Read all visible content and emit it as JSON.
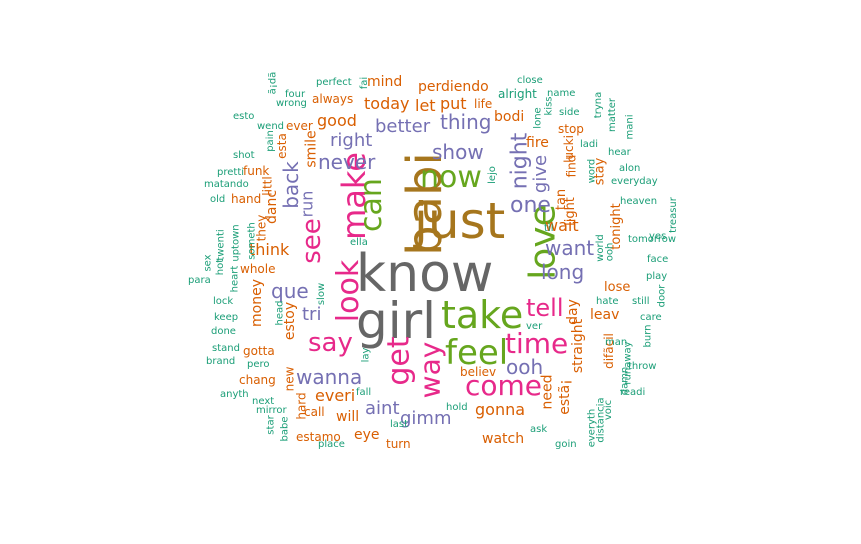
{
  "colors": {
    "gray": "#666666",
    "brown": "#a6761d",
    "green": "#66a61e",
    "pink": "#e7298a",
    "purple": "#7570b3",
    "orange": "#d95f02",
    "teal": "#1b9e77"
  },
  "words": [
    {
      "text": "know",
      "color": "gray",
      "weight": 1.0
    },
    {
      "text": "girl",
      "color": "gray",
      "weight": 0.9
    },
    {
      "text": "just",
      "color": "brown",
      "weight": 0.86
    },
    {
      "text": "babi",
      "color": "brown",
      "weight": 0.86
    },
    {
      "text": "take",
      "color": "green",
      "weight": 0.66
    },
    {
      "text": "now",
      "color": "green",
      "weight": 0.55
    },
    {
      "text": "love",
      "color": "green",
      "weight": 0.55
    },
    {
      "text": "feel",
      "color": "green",
      "weight": 0.57
    },
    {
      "text": "make",
      "color": "pink",
      "weight": 0.5
    },
    {
      "text": "look",
      "color": "pink",
      "weight": 0.5
    },
    {
      "text": "get",
      "color": "pink",
      "weight": 0.48
    },
    {
      "text": "way",
      "color": "pink",
      "weight": 0.48
    },
    {
      "text": "come",
      "color": "pink",
      "weight": 0.45
    },
    {
      "text": "time",
      "color": "pink",
      "weight": 0.45
    },
    {
      "text": "say",
      "color": "pink",
      "weight": 0.4
    },
    {
      "text": "see",
      "color": "pink",
      "weight": 0.4
    },
    {
      "text": "tell",
      "color": "pink",
      "weight": 0.4
    },
    {
      "text": "can",
      "color": "green",
      "weight": 0.45
    },
    {
      "text": "one",
      "color": "purple",
      "weight": 0.36
    },
    {
      "text": "night",
      "color": "purple",
      "weight": 0.34
    },
    {
      "text": "show",
      "color": "purple",
      "weight": 0.32
    },
    {
      "text": "thing",
      "color": "purple",
      "weight": 0.32
    },
    {
      "text": "never",
      "color": "purple",
      "weight": 0.32
    },
    {
      "text": "want",
      "color": "purple",
      "weight": 0.3
    },
    {
      "text": "long",
      "color": "purple",
      "weight": 0.32
    },
    {
      "text": "ooh",
      "color": "purple",
      "weight": 0.32
    },
    {
      "text": "wanna",
      "color": "purple",
      "weight": 0.32
    },
    {
      "text": "que",
      "color": "purple",
      "weight": 0.3
    },
    {
      "text": "back",
      "color": "purple",
      "weight": 0.3
    },
    {
      "text": "right",
      "color": "purple",
      "weight": 0.28
    },
    {
      "text": "better",
      "color": "purple",
      "weight": 0.28
    },
    {
      "text": "give",
      "color": "purple",
      "weight": 0.28
    },
    {
      "text": "run",
      "color": "purple",
      "weight": 0.26
    },
    {
      "text": "tri",
      "color": "purple",
      "weight": 0.28
    },
    {
      "text": "aint",
      "color": "purple",
      "weight": 0.28
    },
    {
      "text": "gimm",
      "color": "purple",
      "weight": 0.28
    },
    {
      "text": "gonna",
      "color": "orange",
      "weight": 0.26
    },
    {
      "text": "everi",
      "color": "orange",
      "weight": 0.26
    },
    {
      "text": "wait",
      "color": "orange",
      "weight": 0.24
    },
    {
      "text": "think",
      "color": "orange",
      "weight": 0.24
    },
    {
      "text": "good",
      "color": "orange",
      "weight": 0.22
    },
    {
      "text": "today",
      "color": "orange",
      "weight": 0.2
    },
    {
      "text": "put",
      "color": "orange",
      "weight": 0.2
    },
    {
      "text": "let",
      "color": "orange",
      "weight": 0.2
    },
    {
      "text": "bodi",
      "color": "orange",
      "weight": 0.18
    },
    {
      "text": "fire",
      "color": "orange",
      "weight": 0.2
    },
    {
      "text": "smile",
      "color": "orange",
      "weight": 0.18
    },
    {
      "text": "danc",
      "color": "orange",
      "weight": 0.2
    },
    {
      "text": "money",
      "color": "orange",
      "weight": 0.2
    },
    {
      "text": "estoy",
      "color": "orange",
      "weight": 0.2
    },
    {
      "text": "need",
      "color": "orange",
      "weight": 0.22
    },
    {
      "text": "day",
      "color": "orange",
      "weight": 0.2
    },
    {
      "text": "estã¡",
      "color": "orange",
      "weight": 0.2
    },
    {
      "text": "straight",
      "color": "orange",
      "weight": 0.2
    },
    {
      "text": "leav",
      "color": "orange",
      "weight": 0.2
    },
    {
      "text": "will",
      "color": "orange",
      "weight": 0.2
    },
    {
      "text": "eye",
      "color": "orange",
      "weight": 0.2
    },
    {
      "text": "watch",
      "color": "orange",
      "weight": 0.2
    },
    {
      "text": "believ",
      "color": "orange",
      "weight": 0.16
    },
    {
      "text": "lose",
      "color": "orange",
      "weight": 0.16
    },
    {
      "text": "tonight",
      "color": "orange",
      "weight": 0.16
    },
    {
      "text": "stay",
      "color": "orange",
      "weight": 0.16
    },
    {
      "text": "tan",
      "color": "orange",
      "weight": 0.16
    },
    {
      "text": "light",
      "color": "orange",
      "weight": 0.16
    },
    {
      "text": "perdiendo",
      "color": "orange",
      "weight": 0.16
    },
    {
      "text": "mind",
      "color": "orange",
      "weight": 0.16
    },
    {
      "text": "always",
      "color": "orange",
      "weight": 0.14
    },
    {
      "text": "ever",
      "color": "orange",
      "weight": 0.14
    },
    {
      "text": "stop",
      "color": "orange",
      "weight": 0.14
    },
    {
      "text": "find",
      "color": "orange",
      "weight": 0.14
    },
    {
      "text": "gotta",
      "color": "orange",
      "weight": 0.14
    },
    {
      "text": "chang",
      "color": "orange",
      "weight": 0.14
    },
    {
      "text": "new",
      "color": "orange",
      "weight": 0.14
    },
    {
      "text": "call",
      "color": "orange",
      "weight": 0.14
    },
    {
      "text": "estamo",
      "color": "orange",
      "weight": 0.14
    },
    {
      "text": "littl",
      "color": "orange",
      "weight": 0.14
    },
    {
      "text": "funk",
      "color": "orange",
      "weight": 0.14
    },
    {
      "text": "hand",
      "color": "orange",
      "weight": 0.14
    },
    {
      "text": "they",
      "color": "orange",
      "weight": 0.14
    },
    {
      "text": "whole",
      "color": "orange",
      "weight": 0.14
    },
    {
      "text": "turn",
      "color": "orange",
      "weight": 0.14
    },
    {
      "text": "lucki",
      "color": "orange",
      "weight": 0.13
    },
    {
      "text": "difã­cil",
      "color": "orange",
      "weight": 0.13
    },
    {
      "text": "esta",
      "color": "orange",
      "weight": 0.12
    },
    {
      "text": "hard",
      "color": "orange",
      "weight": 0.12
    },
    {
      "text": "life",
      "color": "orange",
      "weight": 0.12
    },
    {
      "text": "alright",
      "color": "teal",
      "weight": 0.12
    },
    {
      "text": "close",
      "color": "teal",
      "weight": 0.1
    },
    {
      "text": "perfect",
      "color": "teal",
      "weight": 0.1
    },
    {
      "text": "four",
      "color": "teal",
      "weight": 0.1
    },
    {
      "text": "wrong",
      "color": "teal",
      "weight": 0.1
    },
    {
      "text": "wend",
      "color": "teal",
      "weight": 0.1
    },
    {
      "text": "esto",
      "color": "teal",
      "weight": 0.1
    },
    {
      "text": "shot",
      "color": "teal",
      "weight": 0.1
    },
    {
      "text": "pain",
      "color": "teal",
      "weight": 0.1
    },
    {
      "text": "pretti",
      "color": "teal",
      "weight": 0.1
    },
    {
      "text": "matando",
      "color": "teal",
      "weight": 0.1
    },
    {
      "text": "old",
      "color": "teal",
      "weight": 0.1
    },
    {
      "text": "uptown",
      "color": "teal",
      "weight": 0.1
    },
    {
      "text": "someth",
      "color": "teal",
      "weight": 0.1
    },
    {
      "text": "twenti",
      "color": "teal",
      "weight": 0.1
    },
    {
      "text": "sex",
      "color": "teal",
      "weight": 0.1
    },
    {
      "text": "hot",
      "color": "teal",
      "weight": 0.1
    },
    {
      "text": "heart",
      "color": "teal",
      "weight": 0.1
    },
    {
      "text": "para",
      "color": "teal",
      "weight": 0.1
    },
    {
      "text": "lock",
      "color": "teal",
      "weight": 0.1
    },
    {
      "text": "keep",
      "color": "teal",
      "weight": 0.1
    },
    {
      "text": "done",
      "color": "teal",
      "weight": 0.1
    },
    {
      "text": "head",
      "color": "teal",
      "weight": 0.1
    },
    {
      "text": "stand",
      "color": "teal",
      "weight": 0.1
    },
    {
      "text": "brand",
      "color": "teal",
      "weight": 0.1
    },
    {
      "text": "pero",
      "color": "teal",
      "weight": 0.1
    },
    {
      "text": "anyth",
      "color": "teal",
      "weight": 0.1
    },
    {
      "text": "next",
      "color": "teal",
      "weight": 0.1
    },
    {
      "text": "mirror",
      "color": "teal",
      "weight": 0.1
    },
    {
      "text": "star",
      "color": "teal",
      "weight": 0.1
    },
    {
      "text": "babe",
      "color": "teal",
      "weight": 0.1
    },
    {
      "text": "place",
      "color": "teal",
      "weight": 0.1
    },
    {
      "text": "slow",
      "color": "teal",
      "weight": 0.1
    },
    {
      "text": "ella",
      "color": "teal",
      "weight": 0.1
    },
    {
      "text": "lay",
      "color": "teal",
      "weight": 0.1
    },
    {
      "text": "fall",
      "color": "teal",
      "weight": 0.1
    },
    {
      "text": "last",
      "color": "teal",
      "weight": 0.1
    },
    {
      "text": "hold",
      "color": "teal",
      "weight": 0.1
    },
    {
      "text": "ask",
      "color": "teal",
      "weight": 0.1
    },
    {
      "text": "ver",
      "color": "teal",
      "weight": 0.1
    },
    {
      "text": "lejo",
      "color": "teal",
      "weight": 0.1
    },
    {
      "text": "til",
      "color": "teal",
      "weight": 0.1
    },
    {
      "text": "ooh",
      "color": "teal",
      "weight": 0.1
    },
    {
      "text": "name",
      "color": "teal",
      "weight": 0.1
    },
    {
      "text": "side",
      "color": "teal",
      "weight": 0.1
    },
    {
      "text": "kiss",
      "color": "teal",
      "weight": 0.1
    },
    {
      "text": "tryna",
      "color": "teal",
      "weight": 0.1
    },
    {
      "text": "matter",
      "color": "teal",
      "weight": 0.1
    },
    {
      "text": "mani",
      "color": "teal",
      "weight": 0.1
    },
    {
      "text": "hear",
      "color": "teal",
      "weight": 0.1
    },
    {
      "text": "alon",
      "color": "teal",
      "weight": 0.1
    },
    {
      "text": "everyday",
      "color": "teal",
      "weight": 0.1
    },
    {
      "text": "word",
      "color": "teal",
      "weight": 0.1
    },
    {
      "text": "ladi",
      "color": "teal",
      "weight": 0.1
    },
    {
      "text": "heaven",
      "color": "teal",
      "weight": 0.1
    },
    {
      "text": "treasur",
      "color": "teal",
      "weight": 0.1
    },
    {
      "text": "yes",
      "color": "teal",
      "weight": 0.1
    },
    {
      "text": "tomorrow",
      "color": "teal",
      "weight": 0.1
    },
    {
      "text": "world",
      "color": "teal",
      "weight": 0.1
    },
    {
      "text": "face",
      "color": "teal",
      "weight": 0.1
    },
    {
      "text": "play",
      "color": "teal",
      "weight": 0.1
    },
    {
      "text": "door",
      "color": "teal",
      "weight": 0.1
    },
    {
      "text": "still",
      "color": "teal",
      "weight": 0.1
    },
    {
      "text": "hate",
      "color": "teal",
      "weight": 0.1
    },
    {
      "text": "care",
      "color": "teal",
      "weight": 0.1
    },
    {
      "text": "burn",
      "color": "teal",
      "weight": 0.1
    },
    {
      "text": "man",
      "color": "teal",
      "weight": 0.1
    },
    {
      "text": "runaway",
      "color": "teal",
      "weight": 0.1
    },
    {
      "text": "throw",
      "color": "teal",
      "weight": 0.1
    },
    {
      "text": "damn",
      "color": "teal",
      "weight": 0.1
    },
    {
      "text": "readi",
      "color": "teal",
      "weight": 0.1
    },
    {
      "text": "voic",
      "color": "teal",
      "weight": 0.1
    },
    {
      "text": "distancia",
      "color": "teal",
      "weight": 0.1
    },
    {
      "text": "everyth",
      "color": "teal",
      "weight": 0.1
    },
    {
      "text": "goin",
      "color": "teal",
      "weight": 0.1
    },
    {
      "text": "lone",
      "color": "teal",
      "weight": 0.1
    },
    {
      "text": "fai",
      "color": "teal",
      "weight": 0.1
    },
    {
      "text": "ã¡dã",
      "color": "teal",
      "weight": 0.1
    }
  ]
}
